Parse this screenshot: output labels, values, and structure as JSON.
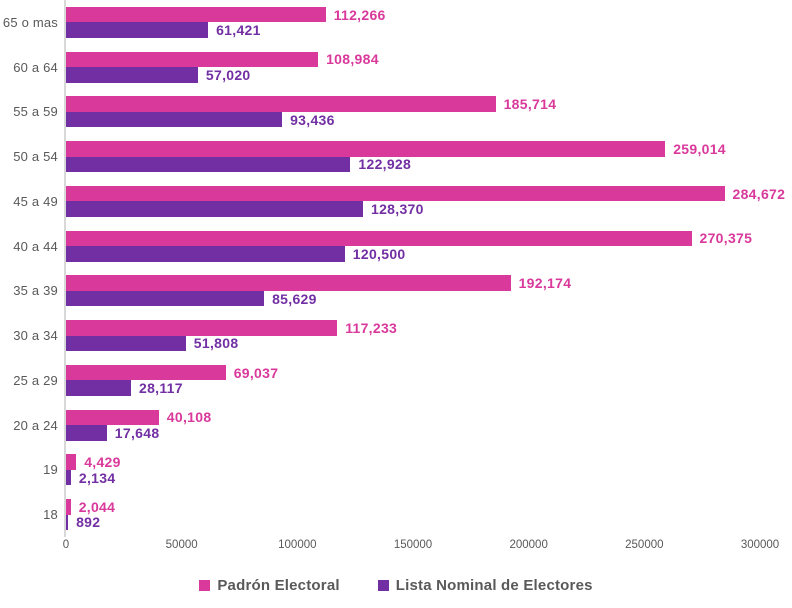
{
  "chart_data": {
    "type": "bar",
    "orientation": "horizontal",
    "title": "",
    "xlabel": "",
    "ylabel": "",
    "categories": [
      "65 o mas",
      "60 a 64",
      "55 a 59",
      "50 a 54",
      "45 a 49",
      "40 a 44",
      "35 a 39",
      "30 a 34",
      "25 a 29",
      "20 a 24",
      "19",
      "18"
    ],
    "series": [
      {
        "name": "Padrón Electoral",
        "color": "#D9399B",
        "values": [
          112266,
          108984,
          185714,
          259014,
          284672,
          270375,
          192174,
          117233,
          69037,
          40108,
          4429,
          2044
        ],
        "labels": [
          "112,266",
          "108,984",
          "185,714",
          "259,014",
          "284,672",
          "270,375",
          "192,174",
          "117,233",
          "69,037",
          "40,108",
          "4,429",
          "2,044"
        ]
      },
      {
        "name": "Lista Nominal de Electores",
        "color": "#722FA3",
        "values": [
          61421,
          57020,
          93436,
          122928,
          128370,
          120500,
          85629,
          51808,
          28117,
          17648,
          2134,
          892
        ],
        "labels": [
          "61,421",
          "57,020",
          "93,436",
          "122,928",
          "128,370",
          "120,500",
          "85,629",
          "51,808",
          "28,117",
          "17,648",
          "2,134",
          "892"
        ]
      }
    ],
    "xlim": [
      0,
      300000
    ],
    "x_ticks": [
      "0",
      "50000",
      "100000",
      "150000",
      "200000",
      "250000",
      "300000"
    ],
    "grid": false,
    "legend_position": "bottom",
    "text_color": "#595959",
    "axis_line_color": "#D8D8D8"
  }
}
